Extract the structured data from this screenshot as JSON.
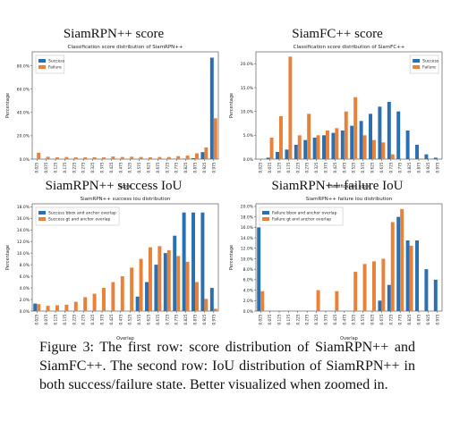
{
  "figure": {
    "caption": "Figure 3: The first row: score distribution of SiamRPN++ and SiamFC++. The second row: IoU distribution of SiamRPN++ in both success/failure state. Better visualized when zoomed in."
  },
  "chart_data": [
    {
      "id": "siamrpn-score",
      "type": "bar",
      "panel_title": "SiamRPN++ score",
      "title": "Classification score distribution of SiamRPN++",
      "xlabel": "Score",
      "ylabel": "Percentage",
      "ylim": [
        0,
        92
      ],
      "yticks": [
        0,
        20,
        40,
        60,
        80
      ],
      "ytick_labels": [
        "0.0%",
        "20.0%",
        "40.0%",
        "60.0%",
        "80.0%"
      ],
      "categories": [
        "0.025",
        "0.075",
        "0.125",
        "0.175",
        "0.225",
        "0.275",
        "0.325",
        "0.375",
        "0.425",
        "0.475",
        "0.525",
        "0.575",
        "0.625",
        "0.675",
        "0.725",
        "0.775",
        "0.825",
        "0.875",
        "0.925",
        "0.975"
      ],
      "legend": "upper-left",
      "colors": [
        "#2a6fb0",
        "#e8823a"
      ],
      "series": [
        {
          "name": "Success",
          "values": [
            0,
            0,
            0,
            0,
            0,
            0,
            0,
            0,
            0,
            0,
            0,
            0,
            0,
            0,
            0,
            0.1,
            0.3,
            0.8,
            6,
            87
          ]
        },
        {
          "name": "Failure",
          "values": [
            5.5,
            2,
            1.5,
            1.8,
            1.5,
            1.5,
            1.6,
            1.5,
            2.2,
            1.8,
            2,
            1.8,
            1.5,
            1.8,
            1.8,
            2.5,
            3,
            5,
            10,
            35
          ]
        }
      ]
    },
    {
      "id": "siamfc-score",
      "type": "bar",
      "panel_title": "SiamFC++ score",
      "title": "Classification score distribution of SiamFC++",
      "xlabel": "Classification score",
      "ylabel": "Percentage",
      "ylim": [
        0,
        22.5
      ],
      "yticks": [
        0,
        5,
        10,
        15,
        20
      ],
      "ytick_labels": [
        "0.0%",
        "5.0%",
        "10.0%",
        "15.0%",
        "20.0%"
      ],
      "categories": [
        "0.025",
        "0.075",
        "0.125",
        "0.175",
        "0.225",
        "0.275",
        "0.325",
        "0.375",
        "0.425",
        "0.475",
        "0.525",
        "0.575",
        "0.625",
        "0.675",
        "0.725",
        "0.775",
        "0.825",
        "0.875",
        "0.925",
        "0.975"
      ],
      "legend": "upper-right",
      "colors": [
        "#2a6fb0",
        "#e8823a"
      ],
      "series": [
        {
          "name": "Success",
          "values": [
            0,
            0.3,
            1.5,
            2,
            3,
            4,
            4.5,
            5,
            5.5,
            6,
            7,
            8,
            9.5,
            11,
            12,
            10,
            6,
            3,
            1,
            0.3
          ]
        },
        {
          "name": "Failure",
          "values": [
            0,
            4.5,
            9,
            21.5,
            5,
            9.5,
            5,
            6,
            6.5,
            10,
            13,
            5,
            4,
            3.5,
            1,
            0,
            0,
            0,
            0,
            0
          ]
        }
      ]
    },
    {
      "id": "siamrpn-success-iou",
      "type": "bar",
      "panel_title": "SiamRPN++ success IoU",
      "title": "SiamRPN++ success iou distribution",
      "xlabel": "Overlap",
      "ylabel": "Percentage",
      "ylim": [
        0,
        18.5
      ],
      "yticks": [
        0,
        2,
        4,
        6,
        8,
        10,
        12,
        14,
        16,
        18
      ],
      "ytick_labels": [
        "0.0%",
        "2.0%",
        "4.0%",
        "6.0%",
        "8.0%",
        "10.0%",
        "12.0%",
        "14.0%",
        "16.0%",
        "18.0%"
      ],
      "categories": [
        "0.025",
        "0.075",
        "0.125",
        "0.175",
        "0.225",
        "0.275",
        "0.325",
        "0.375",
        "0.425",
        "0.475",
        "0.525",
        "0.575",
        "0.625",
        "0.675",
        "0.725",
        "0.775",
        "0.825",
        "0.875",
        "0.925",
        "0.975"
      ],
      "legend": "upper-left",
      "colors": [
        "#2a6fb0",
        "#e8823a"
      ],
      "series": [
        {
          "name": "Success bbox and anchor overlap",
          "values": [
            1.3,
            0,
            0,
            0,
            0,
            0,
            0,
            0,
            0,
            0,
            0,
            2.5,
            5,
            8,
            10,
            13,
            17,
            17,
            17,
            4
          ]
        },
        {
          "name": "Success gt and anchor overlap",
          "values": [
            1.2,
            0.9,
            1,
            1.1,
            1.6,
            2.4,
            3,
            4,
            5,
            6,
            7.5,
            9,
            11,
            11.2,
            10.5,
            9.5,
            8.5,
            5,
            2.1,
            0.4
          ]
        }
      ]
    },
    {
      "id": "siamrpn-failure-iou",
      "type": "bar",
      "panel_title": "SiamRPN++ failure IoU",
      "title": "SiamRPN++ failure iou distribution",
      "xlabel": "Overlap",
      "ylabel": "Percentage",
      "ylim": [
        0,
        20.5
      ],
      "yticks": [
        0,
        2,
        4,
        6,
        8,
        10,
        12,
        14,
        16,
        18,
        20
      ],
      "ytick_labels": [
        "0.0%",
        "2.0%",
        "4.0%",
        "6.0%",
        "8.0%",
        "10.0%",
        "12.0%",
        "14.0%",
        "16.0%",
        "18.0%",
        "20.0%"
      ],
      "categories": [
        "0.025",
        "0.075",
        "0.125",
        "0.175",
        "0.225",
        "0.275",
        "0.325",
        "0.375",
        "0.425",
        "0.475",
        "0.525",
        "0.575",
        "0.625",
        "0.675",
        "0.725",
        "0.775",
        "0.825",
        "0.875",
        "0.925",
        "0.975"
      ],
      "legend": "upper-left",
      "colors": [
        "#2a6fb0",
        "#e8823a"
      ],
      "series": [
        {
          "name": "Failure bbox and anchor overlap",
          "values": [
            16,
            0,
            0,
            0,
            0,
            0,
            0,
            0,
            0,
            0,
            0,
            0,
            0,
            2,
            5,
            18,
            13.5,
            13.5,
            8,
            6
          ]
        },
        {
          "name": "Failure gt and anchor overlap",
          "values": [
            3.8,
            0,
            0,
            0,
            0,
            0,
            4,
            0,
            3.8,
            0,
            7.5,
            9,
            9.5,
            10,
            17,
            19.5,
            12.5,
            0,
            0,
            0
          ]
        }
      ]
    }
  ]
}
